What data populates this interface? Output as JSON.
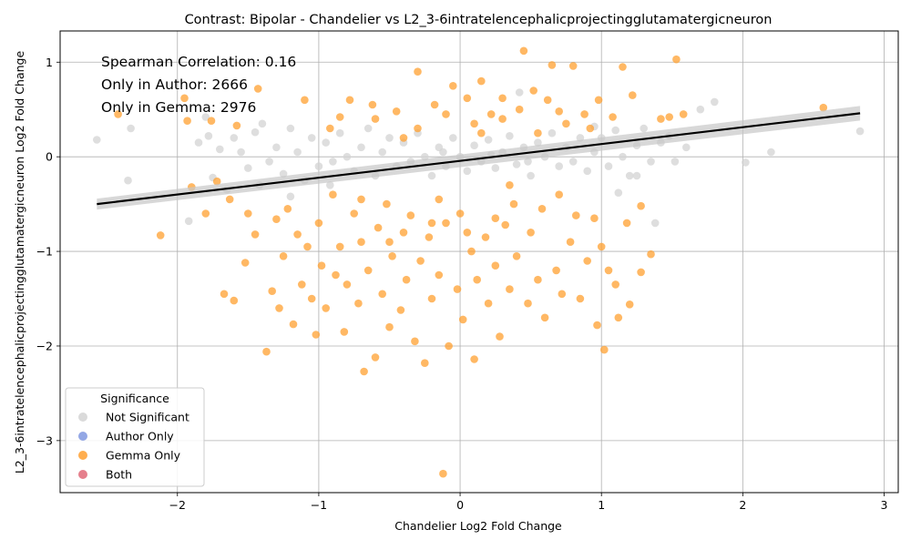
{
  "chart_data": {
    "type": "scatter",
    "title": "Contrast: Bipolar - Chandelier vs L2_3-6intratelencephalicprojectingglutamatergicneuron",
    "xlabel": "Chandelier Log2 Fold Change",
    "ylabel": "L2_3-6intratelencephalicprojectingglutamatergicneuron Log2 Fold Change",
    "xlim": [
      -2.83,
      3.1
    ],
    "ylim": [
      -3.55,
      1.33
    ],
    "xticks": [
      -2,
      -1,
      0,
      1,
      2,
      3
    ],
    "yticks": [
      1,
      0,
      -1,
      -2,
      -3
    ],
    "xtick_labels": [
      "−2",
      "−1",
      "0",
      "1",
      "2",
      "3"
    ],
    "ytick_labels": [
      "1",
      "0",
      "−1",
      "−2",
      "−3"
    ],
    "grid": true,
    "annotations": [
      "Spearman Correlation: 0.16",
      "Only in Author: 2666",
      "Only in Gemma: 2976"
    ],
    "legend": {
      "title": "Significance",
      "position": "lower-left",
      "entries": [
        {
          "label": "Not Significant",
          "color": "#d3d3d3"
        },
        {
          "label": "Author Only",
          "color": "#8098e0"
        },
        {
          "label": "Gemma Only",
          "color": "#ffa030"
        },
        {
          "label": "Both",
          "color": "#e06878"
        }
      ]
    },
    "regression_line": {
      "x": [
        -2.57,
        2.83
      ],
      "y": [
        -0.5,
        0.46
      ],
      "color": "#000000"
    },
    "series": [
      {
        "name": "Not Significant",
        "color": "#d3d3d3",
        "points": [
          [
            -2.57,
            0.18
          ],
          [
            -2.33,
            0.3
          ],
          [
            -2.35,
            -0.25
          ],
          [
            -1.92,
            -0.68
          ],
          [
            -1.85,
            0.15
          ],
          [
            -1.8,
            0.42
          ],
          [
            -1.78,
            0.22
          ],
          [
            -1.75,
            -0.22
          ],
          [
            -1.6,
            0.2
          ],
          [
            -1.55,
            0.05
          ],
          [
            -1.5,
            -0.12
          ],
          [
            -1.45,
            0.26
          ],
          [
            -1.42,
            -0.3
          ],
          [
            -1.4,
            0.35
          ],
          [
            -1.35,
            -0.05
          ],
          [
            -1.3,
            0.1
          ],
          [
            -1.25,
            -0.18
          ],
          [
            -1.2,
            0.3
          ],
          [
            -1.15,
            0.05
          ],
          [
            -1.1,
            -0.25
          ],
          [
            -1.05,
            0.2
          ],
          [
            -1.0,
            -0.1
          ],
          [
            -0.95,
            0.15
          ],
          [
            -0.9,
            -0.05
          ],
          [
            -0.85,
            0.25
          ],
          [
            -0.8,
            0.0
          ],
          [
            -0.75,
            -0.15
          ],
          [
            -0.7,
            0.1
          ],
          [
            -0.65,
            0.3
          ],
          [
            -0.6,
            -0.2
          ],
          [
            -0.55,
            0.05
          ],
          [
            -0.5,
            0.2
          ],
          [
            -0.45,
            -0.1
          ],
          [
            -0.4,
            0.15
          ],
          [
            -0.35,
            -0.05
          ],
          [
            -0.3,
            0.25
          ],
          [
            -0.25,
            0.0
          ],
          [
            -0.2,
            -0.2
          ],
          [
            -0.15,
            0.1
          ],
          [
            -0.1,
            -0.1
          ],
          [
            -0.05,
            0.2
          ],
          [
            0.0,
            0.0
          ],
          [
            0.05,
            -0.15
          ],
          [
            0.1,
            0.12
          ],
          [
            0.15,
            -0.05
          ],
          [
            0.2,
            0.18
          ],
          [
            0.25,
            -0.12
          ],
          [
            0.3,
            0.05
          ],
          [
            0.35,
            0.22
          ],
          [
            0.4,
            -0.08
          ],
          [
            0.45,
            0.1
          ],
          [
            0.5,
            -0.2
          ],
          [
            0.55,
            0.15
          ],
          [
            0.6,
            0.0
          ],
          [
            0.65,
            0.25
          ],
          [
            0.7,
            -0.1
          ],
          [
            0.75,
            0.1
          ],
          [
            0.8,
            -0.05
          ],
          [
            0.85,
            0.2
          ],
          [
            0.9,
            -0.15
          ],
          [
            0.95,
            0.05
          ],
          [
            1.0,
            0.2
          ],
          [
            1.05,
            -0.1
          ],
          [
            1.1,
            0.28
          ],
          [
            1.15,
            0.0
          ],
          [
            1.2,
            -0.2
          ],
          [
            1.25,
            0.12
          ],
          [
            1.3,
            0.3
          ],
          [
            1.35,
            -0.05
          ],
          [
            1.38,
            -0.7
          ],
          [
            1.42,
            0.15
          ],
          [
            1.48,
            0.22
          ],
          [
            1.52,
            -0.05
          ],
          [
            1.6,
            0.1
          ],
          [
            1.7,
            0.5
          ],
          [
            1.8,
            0.58
          ],
          [
            2.02,
            -0.06
          ],
          [
            2.2,
            0.05
          ],
          [
            2.83,
            0.27
          ],
          [
            -1.7,
            0.08
          ],
          [
            -1.65,
            -0.35
          ],
          [
            -1.2,
            -0.42
          ],
          [
            -0.92,
            -0.3
          ],
          [
            0.42,
            0.68
          ],
          [
            0.95,
            0.32
          ],
          [
            1.12,
            -0.38
          ],
          [
            1.25,
            -0.2
          ],
          [
            0.48,
            -0.05
          ],
          [
            -0.12,
            0.05
          ],
          [
            0.22,
            0.02
          ]
        ]
      },
      {
        "name": "Gemma Only",
        "color": "#ffa030",
        "points": [
          [
            -2.42,
            0.45
          ],
          [
            -2.12,
            -0.83
          ],
          [
            -1.95,
            0.62
          ],
          [
            -1.93,
            0.38
          ],
          [
            -1.9,
            -0.32
          ],
          [
            -1.8,
            -0.6
          ],
          [
            -1.76,
            0.38
          ],
          [
            -1.72,
            -0.26
          ],
          [
            -1.67,
            -1.45
          ],
          [
            -1.63,
            -0.45
          ],
          [
            -1.6,
            -1.52
          ],
          [
            -1.58,
            0.33
          ],
          [
            -1.52,
            -1.12
          ],
          [
            -1.5,
            -0.6
          ],
          [
            -1.45,
            -0.82
          ],
          [
            -1.43,
            0.72
          ],
          [
            -1.37,
            -2.06
          ],
          [
            -1.33,
            -1.42
          ],
          [
            -1.3,
            -0.66
          ],
          [
            -1.28,
            -1.6
          ],
          [
            -1.25,
            -1.05
          ],
          [
            -1.22,
            -0.55
          ],
          [
            -1.18,
            -1.77
          ],
          [
            -1.15,
            -0.82
          ],
          [
            -1.12,
            -1.35
          ],
          [
            -1.1,
            0.6
          ],
          [
            -1.08,
            -0.95
          ],
          [
            -1.05,
            -1.5
          ],
          [
            -1.02,
            -1.88
          ],
          [
            -1.0,
            -0.7
          ],
          [
            -0.98,
            -1.15
          ],
          [
            -0.95,
            -1.6
          ],
          [
            -0.92,
            0.3
          ],
          [
            -0.9,
            -0.4
          ],
          [
            -0.88,
            -1.25
          ],
          [
            -0.85,
            -0.95
          ],
          [
            -0.82,
            -1.85
          ],
          [
            -0.8,
            -1.35
          ],
          [
            -0.78,
            0.6
          ],
          [
            -0.75,
            -0.6
          ],
          [
            -0.72,
            -1.55
          ],
          [
            -0.7,
            -0.9
          ],
          [
            -0.68,
            -2.27
          ],
          [
            -0.65,
            -1.2
          ],
          [
            -0.62,
            0.55
          ],
          [
            -0.6,
            -2.12
          ],
          [
            -0.58,
            -0.75
          ],
          [
            -0.55,
            -1.45
          ],
          [
            -0.52,
            -0.5
          ],
          [
            -0.5,
            -1.8
          ],
          [
            -0.48,
            -1.05
          ],
          [
            -0.45,
            0.48
          ],
          [
            -0.42,
            -1.62
          ],
          [
            -0.4,
            -0.8
          ],
          [
            -0.38,
            -1.3
          ],
          [
            -0.35,
            -0.62
          ],
          [
            -0.32,
            -1.95
          ],
          [
            -0.3,
            0.9
          ],
          [
            -0.28,
            -1.1
          ],
          [
            -0.25,
            -2.18
          ],
          [
            -0.22,
            -0.85
          ],
          [
            -0.2,
            -1.5
          ],
          [
            -0.18,
            0.55
          ],
          [
            -0.15,
            -1.25
          ],
          [
            -0.12,
            -3.35
          ],
          [
            -0.1,
            -0.7
          ],
          [
            -0.08,
            -2.0
          ],
          [
            -0.05,
            0.75
          ],
          [
            -0.02,
            -1.4
          ],
          [
            0.0,
            -0.6
          ],
          [
            0.02,
            -1.72
          ],
          [
            0.05,
            0.62
          ],
          [
            0.08,
            -1.0
          ],
          [
            0.1,
            -2.14
          ],
          [
            0.12,
            -1.3
          ],
          [
            0.15,
            0.8
          ],
          [
            0.18,
            -0.85
          ],
          [
            0.2,
            -1.55
          ],
          [
            0.22,
            0.45
          ],
          [
            0.25,
            -1.15
          ],
          [
            0.28,
            -1.9
          ],
          [
            0.3,
            0.62
          ],
          [
            0.32,
            -0.72
          ],
          [
            0.35,
            -1.4
          ],
          [
            0.38,
            -0.5
          ],
          [
            0.4,
            -1.05
          ],
          [
            0.42,
            0.5
          ],
          [
            0.45,
            1.12
          ],
          [
            0.48,
            -1.55
          ],
          [
            0.5,
            -0.8
          ],
          [
            0.52,
            0.7
          ],
          [
            0.55,
            -1.3
          ],
          [
            0.58,
            -0.55
          ],
          [
            0.6,
            -1.7
          ],
          [
            0.62,
            0.6
          ],
          [
            0.65,
            0.97
          ],
          [
            0.68,
            -1.2
          ],
          [
            0.7,
            -0.4
          ],
          [
            0.72,
            -1.45
          ],
          [
            0.75,
            0.35
          ],
          [
            0.78,
            -0.9
          ],
          [
            0.8,
            0.96
          ],
          [
            0.82,
            -0.62
          ],
          [
            0.85,
            -1.5
          ],
          [
            0.88,
            0.45
          ],
          [
            0.9,
            -1.1
          ],
          [
            0.92,
            0.3
          ],
          [
            0.95,
            -0.65
          ],
          [
            0.97,
            -1.78
          ],
          [
            0.98,
            0.6
          ],
          [
            1.0,
            -0.95
          ],
          [
            1.02,
            -2.04
          ],
          [
            1.05,
            -1.2
          ],
          [
            1.08,
            0.42
          ],
          [
            1.1,
            -1.35
          ],
          [
            1.12,
            -1.7
          ],
          [
            1.15,
            0.95
          ],
          [
            1.18,
            -0.7
          ],
          [
            1.2,
            -1.56
          ],
          [
            1.22,
            0.65
          ],
          [
            1.28,
            -1.22
          ],
          [
            1.28,
            -0.52
          ],
          [
            1.35,
            -1.03
          ],
          [
            1.42,
            0.4
          ],
          [
            1.48,
            0.42
          ],
          [
            1.53,
            1.03
          ],
          [
            1.58,
            0.45
          ],
          [
            2.57,
            0.52
          ],
          [
            -0.6,
            0.4
          ],
          [
            -0.3,
            0.3
          ],
          [
            -0.1,
            0.45
          ],
          [
            0.1,
            0.35
          ],
          [
            0.3,
            0.4
          ],
          [
            -0.5,
            -0.9
          ],
          [
            -0.2,
            -0.7
          ],
          [
            0.05,
            -0.8
          ],
          [
            0.25,
            -0.65
          ],
          [
            -0.4,
            0.2
          ],
          [
            0.15,
            0.25
          ],
          [
            -0.7,
            -0.45
          ],
          [
            0.55,
            0.25
          ],
          [
            -0.15,
            -0.45
          ],
          [
            0.35,
            -0.3
          ],
          [
            -0.85,
            0.42
          ],
          [
            0.7,
            0.48
          ]
        ]
      }
    ]
  }
}
